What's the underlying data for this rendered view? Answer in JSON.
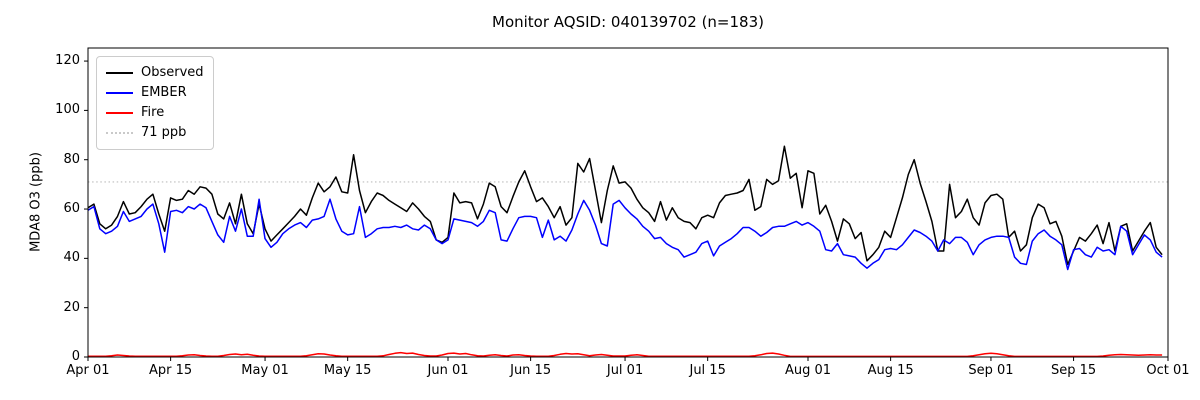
{
  "title": "Monitor AQSID: 040139702 (n=183)",
  "y_axis": {
    "label": "MDA8 O3 (ppb)"
  },
  "legend": {
    "entries": [
      {
        "label": "Observed",
        "color": "#000000",
        "style": "solid"
      },
      {
        "label": "EMBER",
        "color": "#0000ff",
        "style": "solid"
      },
      {
        "label": "Fire",
        "color": "#ff0000",
        "style": "solid"
      },
      {
        "label": "71 ppb",
        "color": "#c9c9c9",
        "style": "dotted"
      }
    ]
  },
  "chart_data": {
    "type": "line",
    "title": "Monitor AQSID: 040139702 (n=183)",
    "xlabel": "",
    "ylabel": "MDA8 O3 (ppb)",
    "x_unit": "days since Apr 01 (daily values, n=183)",
    "xlim": [
      0,
      183
    ],
    "ylim": [
      0,
      125.3
    ],
    "grid": false,
    "legend_position": "upper left",
    "x_ticks": {
      "days": [
        0,
        14,
        30,
        44,
        61,
        75,
        91,
        105,
        122,
        136,
        153,
        167,
        183
      ],
      "labels": [
        "Apr 01",
        "Apr 15",
        "May 01",
        "May 15",
        "Jun 01",
        "Jun 15",
        "Jul 01",
        "Jul 15",
        "Aug 01",
        "Aug 15",
        "Sep 01",
        "Sep 15",
        "Oct 01"
      ]
    },
    "y_ticks": [
      0,
      20,
      40,
      60,
      80,
      100,
      120
    ],
    "reference_line": {
      "value": 71,
      "label": "71 ppb",
      "color": "#c9c9c9",
      "style": "dotted"
    },
    "series": [
      {
        "name": "Observed",
        "color": "#000000",
        "values": [
          60.5,
          62,
          54,
          52,
          53.5,
          57,
          63,
          58,
          58.5,
          61,
          64,
          66,
          58,
          51,
          64.5,
          63.5,
          64,
          67.5,
          66,
          69,
          68.5,
          66,
          58,
          56,
          62.5,
          54,
          66,
          54,
          50,
          62,
          52,
          47,
          49.5,
          52,
          54.5,
          57,
          60,
          57.5,
          64.5,
          70.5,
          67,
          69,
          73,
          67,
          66.5,
          82,
          67.5,
          58.5,
          63,
          66.5,
          65.5,
          63.5,
          62,
          60.5,
          59,
          62.5,
          60,
          57,
          55,
          47.5,
          46.5,
          48.5,
          66.5,
          62.5,
          63,
          62.5,
          56,
          62,
          70.5,
          69,
          61,
          58.5,
          65,
          71,
          75.5,
          69,
          63,
          64.5,
          61,
          56.5,
          61,
          53.5,
          56.5,
          78.5,
          75,
          80.5,
          67.5,
          54.5,
          67.5,
          77.5,
          70.5,
          71,
          68.5,
          64,
          60.5,
          58.5,
          55,
          63,
          55.5,
          60.5,
          56.5,
          55,
          54.5,
          52,
          56.5,
          57.5,
          56.5,
          62.5,
          65.5,
          66,
          66.5,
          67.5,
          72,
          59.5,
          61,
          72,
          70,
          71.5,
          85.5,
          72.5,
          74.5,
          60.5,
          75.5,
          74.5,
          58,
          61.5,
          55,
          47,
          56,
          54,
          48,
          50.5,
          39,
          41.5,
          44.5,
          51,
          48.5,
          56.5,
          64.5,
          74,
          80,
          70.5,
          63,
          55,
          43,
          43,
          70,
          56.5,
          59,
          64,
          56.5,
          53.5,
          62.5,
          65.5,
          66,
          64,
          48.5,
          51,
          43,
          45.5,
          56.5,
          62,
          60.5,
          54,
          55,
          49,
          37.5,
          43,
          48.5,
          47,
          50,
          53.5,
          46,
          54.5,
          43,
          53,
          54,
          43,
          47,
          51,
          54.5,
          44.5,
          41.5
        ]
      },
      {
        "name": "EMBER",
        "color": "#0000ff",
        "values": [
          59.5,
          61,
          52,
          50,
          51,
          53,
          59,
          55,
          56,
          57,
          60,
          62,
          54,
          42.5,
          59,
          59.5,
          58.5,
          61,
          60,
          62,
          60.5,
          55,
          49.5,
          46.5,
          57,
          51,
          60,
          49,
          49,
          64,
          48,
          44.5,
          46.5,
          50,
          52,
          53.5,
          54.5,
          52.5,
          55.5,
          56,
          57,
          64,
          56,
          51,
          49.5,
          50,
          61,
          48.5,
          50,
          52,
          52.5,
          52.5,
          53,
          52.5,
          53.5,
          52,
          51.5,
          53.5,
          52,
          47.5,
          46,
          47.5,
          56,
          55.5,
          55,
          54.5,
          53,
          55,
          59.5,
          58.5,
          47.5,
          47,
          52,
          56.5,
          57,
          57,
          56.5,
          48.5,
          55.5,
          47.5,
          49,
          47,
          51.5,
          58,
          63.5,
          59.5,
          53.5,
          46,
          45,
          62,
          63.5,
          60.5,
          58,
          56,
          53,
          51,
          48,
          48.5,
          46,
          44.5,
          43.5,
          40.5,
          41.5,
          42.5,
          46,
          47,
          41,
          45,
          46.5,
          48,
          50,
          52.5,
          52.5,
          51,
          49,
          50.5,
          52.5,
          53,
          53,
          54,
          55,
          53.5,
          54.5,
          53,
          51,
          43.5,
          43,
          46,
          41.5,
          41,
          40.5,
          38,
          36,
          38,
          39.5,
          43.5,
          44,
          43.5,
          45.5,
          48.5,
          51.5,
          50.5,
          49,
          47,
          43,
          47.5,
          46,
          48.5,
          48.5,
          46.5,
          41.5,
          45.5,
          47.5,
          48.5,
          49,
          49,
          48.5,
          40.5,
          38,
          37.5,
          47,
          50,
          51.5,
          49,
          47.5,
          45.5,
          35.5,
          43.5,
          44,
          41.5,
          40.5,
          44.5,
          43,
          43.5,
          41.5,
          53,
          51,
          41.5,
          45.5,
          49.5,
          47.5,
          42.5,
          40.5
        ]
      },
      {
        "name": "Fire",
        "color": "#ff0000",
        "values": [
          0.3,
          0.3,
          0.3,
          0.3,
          0.5,
          0.8,
          0.6,
          0.4,
          0.3,
          0.3,
          0.3,
          0.3,
          0.3,
          0.3,
          0.3,
          0.3,
          0.5,
          0.8,
          0.9,
          0.6,
          0.4,
          0.3,
          0.3,
          0.6,
          1.0,
          1.2,
          0.9,
          1.1,
          0.7,
          0.4,
          0.3,
          0.3,
          0.3,
          0.3,
          0.3,
          0.3,
          0.3,
          0.5,
          0.9,
          1.3,
          1.2,
          0.8,
          0.5,
          0.3,
          0.3,
          0.3,
          0.3,
          0.3,
          0.3,
          0.3,
          0.5,
          1.0,
          1.5,
          1.8,
          1.4,
          1.6,
          1.0,
          0.6,
          0.4,
          0.4,
          0.8,
          1.4,
          1.6,
          1.2,
          1.4,
          0.9,
          0.5,
          0.4,
          0.7,
          0.9,
          0.6,
          0.4,
          0.8,
          0.9,
          0.6,
          0.4,
          0.3,
          0.3,
          0.3,
          0.6,
          1.1,
          1.4,
          1.2,
          1.3,
          0.9,
          0.5,
          0.8,
          1.0,
          0.7,
          0.4,
          0.4,
          0.4,
          0.7,
          0.9,
          0.6,
          0.3,
          0.3,
          0.3,
          0.3,
          0.3,
          0.3,
          0.3,
          0.3,
          0.3,
          0.3,
          0.3,
          0.3,
          0.3,
          0.3,
          0.3,
          0.3,
          0.3,
          0.3,
          0.5,
          0.9,
          1.4,
          1.6,
          1.2,
          0.7,
          0.25,
          0.25,
          0.25,
          0.25,
          0.25,
          0.25,
          0.25,
          0.25,
          0.25,
          0.25,
          0.25,
          0.25,
          0.25,
          0.25,
          0.25,
          0.25,
          0.25,
          0.25,
          0.25,
          0.25,
          0.25,
          0.25,
          0.25,
          0.25,
          0.25,
          0.25,
          0.25,
          0.25,
          0.25,
          0.25,
          0.25,
          0.5,
          0.9,
          1.3,
          1.5,
          1.3,
          0.9,
          0.5,
          0.25,
          0.25,
          0.25,
          0.25,
          0.25,
          0.25,
          0.25,
          0.25,
          0.25,
          0.25,
          0.25,
          0.25,
          0.25,
          0.25,
          0.25,
          0.4,
          0.7,
          0.9,
          1.0,
          0.9,
          0.8,
          0.7,
          0.8,
          0.9,
          0.8,
          0.8
        ]
      }
    ]
  }
}
